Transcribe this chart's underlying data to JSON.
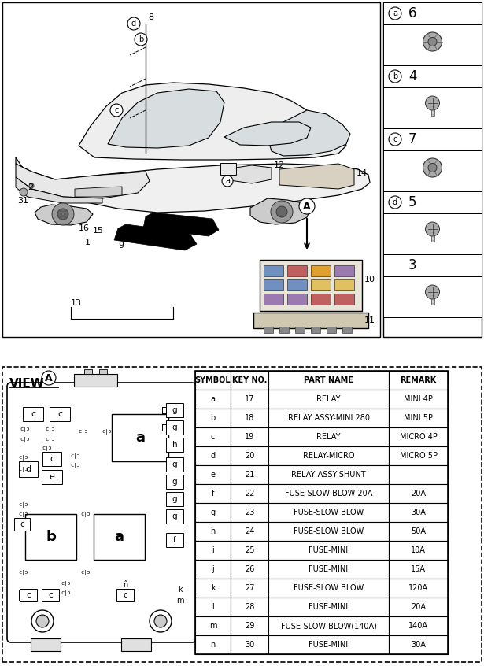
{
  "bg_color": "#ffffff",
  "table_headers": [
    "SYMBOL",
    "KEY NO.",
    "PART NAME",
    "REMARK"
  ],
  "table_rows": [
    [
      "a",
      "17",
      "RELAY",
      "MINI 4P"
    ],
    [
      "b",
      "18",
      "RELAY ASSY-MINI 280",
      "MINI 5P"
    ],
    [
      "c",
      "19",
      "RELAY",
      "MICRO 4P"
    ],
    [
      "d",
      "20",
      "RELAY-MICRO",
      "MICRO 5P"
    ],
    [
      "e",
      "21",
      "RELAY ASSY-SHUNT",
      ""
    ],
    [
      "f",
      "22",
      "FUSE-SLOW BLOW 20A",
      "20A"
    ],
    [
      "g",
      "23",
      "FUSE-SLOW BLOW",
      "30A"
    ],
    [
      "h",
      "24",
      "FUSE-SLOW BLOW",
      "50A"
    ],
    [
      "i",
      "25",
      "FUSE-MINI",
      "10A"
    ],
    [
      "j",
      "26",
      "FUSE-MINI",
      "15A"
    ],
    [
      "k",
      "27",
      "FUSE-SLOW BLOW",
      "120A"
    ],
    [
      "l",
      "28",
      "FUSE-MINI",
      "20A"
    ],
    [
      "m",
      "29",
      "FUSE-SLOW BLOW(140A)",
      "140A"
    ],
    [
      "n",
      "30",
      "FUSE-MINI",
      "30A"
    ]
  ],
  "parts_panel": [
    {
      "label": "a",
      "number": "6",
      "type": "nut"
    },
    {
      "label": "b",
      "number": "4",
      "type": "bolt"
    },
    {
      "label": "c",
      "number": "7",
      "type": "nut"
    },
    {
      "label": "d",
      "number": "5",
      "type": "bolt"
    },
    {
      "label": "",
      "number": "3",
      "type": "bolt"
    }
  ]
}
